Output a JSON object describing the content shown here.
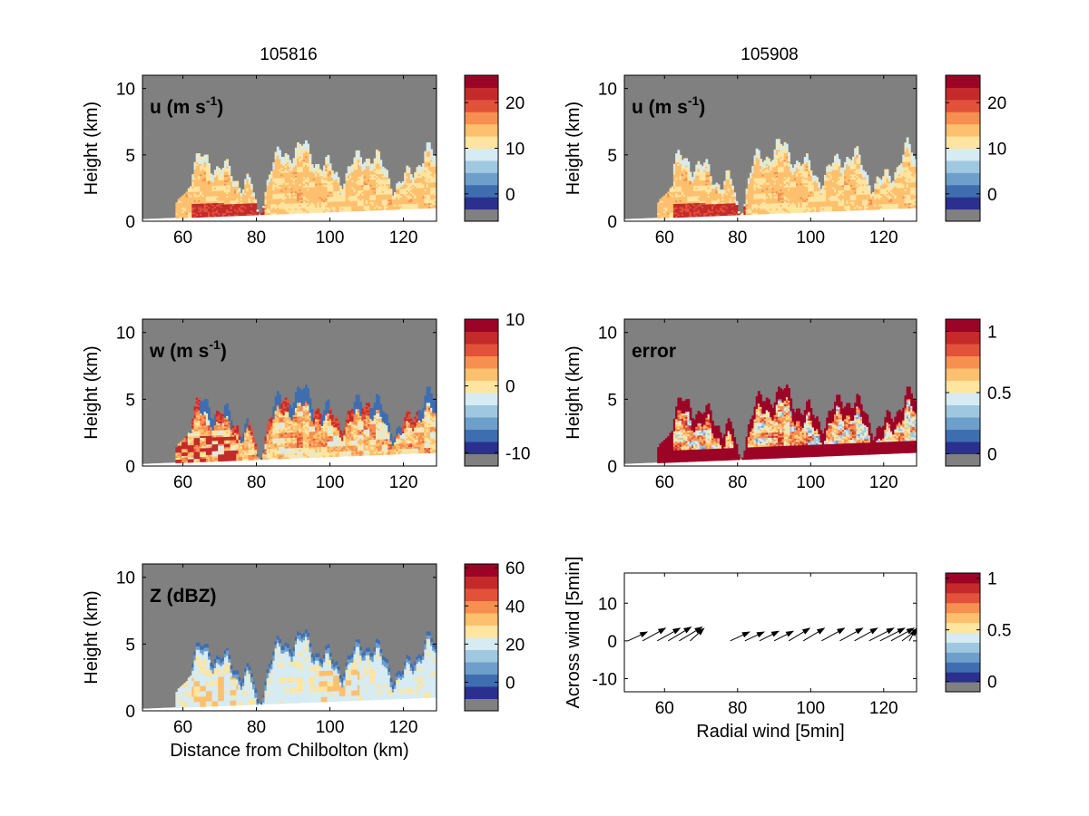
{
  "colormap": [
    "#808080",
    "#2b2f8e",
    "#3f6eb0",
    "#6e9fcb",
    "#9fc7e0",
    "#d6ebf2",
    "#ffe5a0",
    "#fdc06e",
    "#f68f50",
    "#e2513a",
    "#c42a2a",
    "#9c0427"
  ],
  "column_titles": [
    "105816",
    "105908"
  ],
  "chart_data": [
    {
      "type": "heatmap",
      "column_title": "105816",
      "panel_label": "u (m s",
      "panel_label_sup": "-1",
      "panel_label_end": ")",
      "ylabel": "Height (km)",
      "xlabel": "",
      "xlim": [
        49,
        129
      ],
      "ylim": [
        0,
        11
      ],
      "xticks": [
        "60",
        "80",
        "100",
        "120"
      ],
      "yticks": [
        "0",
        "5",
        "10"
      ],
      "colorbar": {
        "vmin": -6,
        "vmax": 26,
        "ticks": [
          {
            "value": 0,
            "label": "0"
          },
          {
            "value": 10,
            "label": "10"
          },
          {
            "value": 20,
            "label": "20"
          }
        ]
      },
      "field": "u",
      "base_value": 12,
      "mask_top": [
        [
          49,
          6.4
        ],
        [
          129,
          11
        ]
      ],
      "blob_specs": [
        [
          88,
          4.0,
          12,
          2.5,
          0.6
        ]
      ]
    },
    {
      "type": "heatmap",
      "column_title": "105908",
      "panel_label": "u (m s",
      "panel_label_sup": "-1",
      "panel_label_end": ")",
      "ylabel": "Height (km)",
      "xlabel": "",
      "xlim": [
        49,
        129
      ],
      "ylim": [
        0,
        11
      ],
      "xticks": [
        "60",
        "80",
        "100",
        "120"
      ],
      "yticks": [
        "0",
        "5",
        "10"
      ],
      "colorbar": {
        "vmin": -6,
        "vmax": 26,
        "ticks": [
          {
            "value": 0,
            "label": "0"
          },
          {
            "value": 10,
            "label": "10"
          },
          {
            "value": 20,
            "label": "20"
          }
        ]
      },
      "field": "u",
      "base_value": 12,
      "mask_top": [
        [
          49,
          6.4
        ],
        [
          129,
          11
        ]
      ]
    },
    {
      "type": "heatmap",
      "panel_label": "w (m s",
      "panel_label_sup": "-1",
      "panel_label_end": ")",
      "ylabel": "Height (km)",
      "xlabel": "",
      "xlim": [
        49,
        129
      ],
      "ylim": [
        0,
        11
      ],
      "xticks": [
        "60",
        "80",
        "100",
        "120"
      ],
      "yticks": [
        "0",
        "5",
        "10"
      ],
      "colorbar": {
        "vmin": -12,
        "vmax": 10,
        "ticks": [
          {
            "value": -10,
            "label": "-10"
          },
          {
            "value": 0,
            "label": "0"
          },
          {
            "value": 10,
            "label": "10"
          }
        ]
      },
      "field": "w",
      "base_value": 0
    },
    {
      "type": "heatmap",
      "panel_label": "error",
      "panel_label_sup": "",
      "panel_label_end": "",
      "ylabel": "Height (km)",
      "xlabel": "",
      "xlim": [
        49,
        129
      ],
      "ylim": [
        0,
        11
      ],
      "xticks": [
        "60",
        "80",
        "100",
        "120"
      ],
      "yticks": [
        "0",
        "5",
        "10"
      ],
      "colorbar": {
        "vmin": -0.1,
        "vmax": 1.1,
        "ticks": [
          {
            "value": 0,
            "label": "0"
          },
          {
            "value": 0.5,
            "label": "0.5"
          },
          {
            "value": 1,
            "label": "1"
          }
        ]
      },
      "field": "error",
      "base_value": 1
    },
    {
      "type": "heatmap",
      "panel_label": "Z (dBZ)",
      "panel_label_sup": "",
      "panel_label_end": "",
      "ylabel": "Height (km)",
      "xlabel": "Distance from Chilbolton (km)",
      "xlim": [
        49,
        129
      ],
      "ylim": [
        0,
        11
      ],
      "xticks": [
        "60",
        "80",
        "100",
        "120"
      ],
      "yticks": [
        "0",
        "5",
        "10"
      ],
      "colorbar": {
        "vmin": -15,
        "vmax": 62,
        "ticks": [
          {
            "value": 0,
            "label": "0"
          },
          {
            "value": 20,
            "label": "20"
          },
          {
            "value": 40,
            "label": "40"
          },
          {
            "value": 60,
            "label": "60"
          }
        ]
      },
      "field": "Z",
      "base_value": 18
    },
    {
      "type": "quiver",
      "panel_label": "",
      "ylabel": "Across wind [5min]",
      "xlabel": "Radial wind [5min]",
      "xlim": [
        49,
        129
      ],
      "ylim": [
        -13.5,
        18
      ],
      "xticks": [
        "60",
        "80",
        "100",
        "120"
      ],
      "yticks": [
        "-10",
        "0",
        "10"
      ],
      "colorbar": {
        "vmin": -0.1,
        "vmax": 1.05,
        "ticks": [
          {
            "value": 0,
            "label": "0"
          },
          {
            "value": 0.5,
            "label": "0.5"
          },
          {
            "value": 1,
            "label": "1"
          }
        ]
      },
      "arrows": [
        {
          "x": 50,
          "y": 0,
          "u": 5.5,
          "v": 2.5
        },
        {
          "x": 54,
          "y": 0,
          "u": 6.5,
          "v": 3.5
        },
        {
          "x": 58,
          "y": 0,
          "u": 6.5,
          "v": 3.5
        },
        {
          "x": 61,
          "y": 0,
          "u": 6.5,
          "v": 3.8
        },
        {
          "x": 64,
          "y": 0,
          "u": 6.5,
          "v": 3.8
        },
        {
          "x": 67,
          "y": 0,
          "u": 4,
          "v": 3.5
        },
        {
          "x": 78,
          "y": 0,
          "u": 5.5,
          "v": 2.5
        },
        {
          "x": 82,
          "y": 0,
          "u": 5.5,
          "v": 2.5
        },
        {
          "x": 86,
          "y": 0,
          "u": 5.5,
          "v": 2.7
        },
        {
          "x": 90,
          "y": 0,
          "u": 5.5,
          "v": 2.7
        },
        {
          "x": 94,
          "y": 0,
          "u": 6,
          "v": 3.5
        },
        {
          "x": 98,
          "y": 0,
          "u": 6,
          "v": 3.5
        },
        {
          "x": 103,
          "y": 0,
          "u": 6.5,
          "v": 3.5
        },
        {
          "x": 108,
          "y": 0,
          "u": 6.5,
          "v": 3.5
        },
        {
          "x": 112,
          "y": 0,
          "u": 6.5,
          "v": 3.5
        },
        {
          "x": 116,
          "y": 0,
          "u": 7,
          "v": 3.5
        },
        {
          "x": 119,
          "y": 0,
          "u": 7,
          "v": 3.5
        },
        {
          "x": 122,
          "y": 0,
          "u": 6.5,
          "v": 3.5
        },
        {
          "x": 125,
          "y": 0,
          "u": 5,
          "v": 3.5
        },
        {
          "x": 127,
          "y": 0,
          "u": 2,
          "v": 3.5
        }
      ]
    }
  ]
}
